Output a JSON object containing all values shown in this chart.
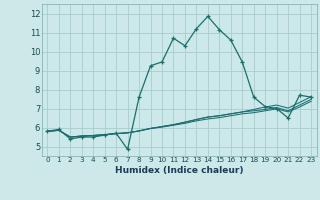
{
  "xlabel": "Humidex (Indice chaleur)",
  "bg_color": "#cce8e8",
  "grid_color": "#aacccc",
  "line_color": "#1a6e6e",
  "x_ticks": [
    0,
    1,
    2,
    3,
    4,
    5,
    6,
    7,
    8,
    9,
    10,
    11,
    12,
    13,
    14,
    15,
    16,
    17,
    18,
    19,
    20,
    21,
    22,
    23
  ],
  "y_ticks": [
    5,
    6,
    7,
    8,
    9,
    10,
    11,
    12
  ],
  "xlim": [
    -0.5,
    23.5
  ],
  "ylim": [
    4.5,
    12.5
  ],
  "series": [
    [
      5.8,
      5.9,
      5.4,
      5.5,
      5.5,
      5.6,
      5.7,
      4.85,
      7.6,
      9.25,
      9.45,
      10.7,
      10.3,
      11.2,
      11.85,
      11.15,
      10.6,
      9.45,
      7.6,
      7.1,
      7.0,
      6.5,
      7.7,
      7.6
    ],
    [
      5.8,
      5.85,
      5.5,
      5.55,
      5.58,
      5.62,
      5.68,
      5.72,
      5.82,
      5.95,
      6.05,
      6.15,
      6.28,
      6.42,
      6.55,
      6.62,
      6.72,
      6.82,
      6.95,
      7.08,
      7.18,
      7.02,
      7.32,
      7.62
    ],
    [
      5.8,
      5.85,
      5.5,
      5.55,
      5.58,
      5.62,
      5.68,
      5.72,
      5.82,
      5.95,
      6.05,
      6.15,
      6.28,
      6.42,
      6.55,
      6.62,
      6.72,
      6.82,
      6.88,
      6.95,
      7.05,
      6.88,
      7.18,
      7.48
    ],
    [
      5.8,
      5.85,
      5.5,
      5.55,
      5.58,
      5.62,
      5.68,
      5.72,
      5.82,
      5.95,
      6.02,
      6.12,
      6.22,
      6.35,
      6.45,
      6.52,
      6.62,
      6.72,
      6.78,
      6.88,
      6.98,
      6.82,
      7.08,
      7.38
    ]
  ]
}
